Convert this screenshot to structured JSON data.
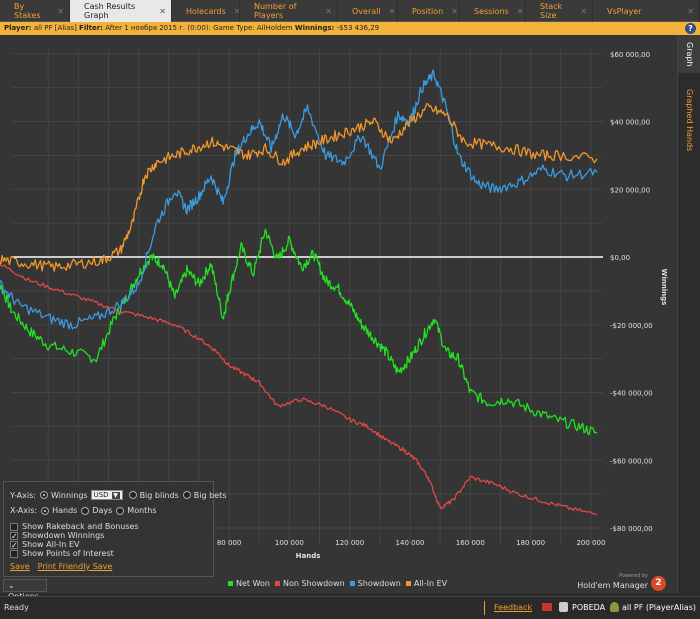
{
  "tabs": [
    {
      "label": "By Stakes",
      "active": false,
      "width": 70
    },
    {
      "label": "Cash Results Graph",
      "active": true,
      "width": 102
    },
    {
      "label": "Holecards",
      "active": false,
      "width": 68
    },
    {
      "label": "Number of Players",
      "active": false,
      "width": 98
    },
    {
      "label": "Overall",
      "active": false,
      "width": 60
    },
    {
      "label": "Position",
      "active": false,
      "width": 62
    },
    {
      "label": "Sessions",
      "active": false,
      "width": 66
    },
    {
      "label": "Stack Size",
      "active": false,
      "width": 67
    },
    {
      "label": "VsPlayer",
      "active": false,
      "width": 107
    }
  ],
  "filter_bar": {
    "player_label": "Player:",
    "player_value": "all PF [Alias]",
    "filter_label": "Filter:",
    "filter_value": "After 1 ноября 2015 г. (0:00): Game Type: AllHoldem",
    "winnings_label": "Winnings:",
    "winnings_value": "-$53 436,29"
  },
  "side_tabs": {
    "graph": "Graph",
    "graphed_hands": "Graphed Hands"
  },
  "options": {
    "y_axis_label": "Y-Axis:",
    "y_winnings": "Winnings",
    "currency": "USD",
    "y_big_blinds": "Big blinds",
    "y_big_bets": "Big bets",
    "x_axis_label": "X-Axis:",
    "x_hands": "Hands",
    "x_days": "Days",
    "x_months": "Months",
    "show_rakeback": "Show Rakeback and Bonuses",
    "showdown_winnings": "Showdown Winnings",
    "show_allin_ev": "Show All-In EV",
    "show_poi": "Show Points of Interest",
    "save": "Save",
    "print_friendly_save": "Print Friendly Save",
    "toggle_label": "Options",
    "checks": {
      "rakeback": false,
      "showdown": true,
      "allin": true,
      "poi": false
    }
  },
  "logo": {
    "powered_by": "Powered by",
    "name": "Hold'em Manager",
    "badge": "2"
  },
  "status": {
    "text": "Ready",
    "feedback": "Feedback",
    "database": "POBEDA",
    "player": "all PF (PlayerAlias)"
  },
  "chart_data": {
    "type": "line",
    "xlabel": "Hands",
    "ylabel": "Winnings",
    "xlim": [
      0,
      204000
    ],
    "ylim": [
      -85000,
      62000
    ],
    "x_ticks": [
      80000,
      100000,
      120000,
      140000,
      160000,
      180000,
      200000
    ],
    "x_tick_labels": [
      "80 000",
      "100 000",
      "120 000",
      "140 000",
      "160 000",
      "180 000",
      "200 000"
    ],
    "y_ticks": [
      60000,
      40000,
      20000,
      0,
      -20000,
      -40000,
      -60000,
      -80000
    ],
    "y_tick_labels": [
      "$60 000,00",
      "$40 000,00",
      "$20 000,00",
      "$0,00",
      "-$20 000,00",
      "-$40 000,00",
      "-$60 000,00",
      "-$80 000,00"
    ],
    "grid": true,
    "legend_position": "bottom",
    "series": [
      {
        "name": "Net Won",
        "color": "#22e022",
        "x": [
          0,
          4000,
          8000,
          14000,
          20000,
          28000,
          36000,
          42000,
          46000,
          50000,
          54000,
          58000,
          62000,
          66000,
          70000,
          74000,
          78000,
          80000,
          84000,
          88000,
          92000,
          96000,
          100000,
          104000,
          108000,
          112000,
          116000,
          120000,
          124000,
          128000,
          132000,
          136000,
          140000,
          144000,
          148000,
          152000,
          156000,
          160000,
          166000,
          172000,
          180000,
          188000,
          196000,
          202000
        ],
        "y": [
          0,
          -8000,
          -16000,
          -22000,
          -26000,
          -28000,
          -30000,
          -18000,
          -12000,
          -5000,
          0,
          -2000,
          -12000,
          -4000,
          -8000,
          -2000,
          -18000,
          -10000,
          3000,
          -5000,
          8000,
          -1000,
          5000,
          -3000,
          1000,
          -7000,
          -9000,
          -14000,
          -20000,
          -24000,
          -28000,
          -34000,
          -30000,
          -24000,
          -18000,
          -28000,
          -30000,
          -40000,
          -43000,
          -42000,
          -45000,
          -48000,
          -50000,
          -52000
        ]
      },
      {
        "name": "Non Showdown",
        "color": "#e04848",
        "x": [
          0,
          6000,
          14000,
          24000,
          34000,
          44000,
          54000,
          62000,
          70000,
          76000,
          80000,
          86000,
          90000,
          96000,
          104000,
          112000,
          120000,
          126000,
          132000,
          138000,
          142000,
          146000,
          150000,
          154000,
          160000,
          168000,
          176000,
          184000,
          192000,
          202000
        ],
        "y": [
          0,
          -3000,
          -7000,
          -10000,
          -13000,
          -16000,
          -18000,
          -20000,
          -24000,
          -28000,
          -32000,
          -35000,
          -37000,
          -44000,
          -42000,
          -44000,
          -48000,
          -50000,
          -54000,
          -57000,
          -60000,
          -65000,
          -74000,
          -72000,
          -65000,
          -67000,
          -70000,
          -72000,
          -74000,
          -76000
        ]
      },
      {
        "name": "Showdown",
        "color": "#3a9ae0",
        "x": [
          0,
          4000,
          10000,
          20000,
          28000,
          36000,
          44000,
          50000,
          56000,
          62000,
          66000,
          70000,
          74000,
          78000,
          82000,
          86000,
          90000,
          94000,
          98000,
          102000,
          106000,
          112000,
          118000,
          124000,
          130000,
          136000,
          140000,
          144000,
          148000,
          152000,
          156000,
          162000,
          168000,
          176000,
          184000,
          192000,
          202000
        ],
        "y": [
          0,
          -8000,
          -14000,
          -18000,
          -20000,
          -18000,
          -14000,
          -8000,
          10000,
          20000,
          14000,
          18000,
          24000,
          16000,
          30000,
          36000,
          40000,
          32000,
          42000,
          36000,
          44000,
          30000,
          28000,
          36000,
          26000,
          42000,
          40000,
          50000,
          54000,
          44000,
          30000,
          22000,
          20000,
          22000,
          26000,
          24000,
          25000
        ]
      },
      {
        "name": "All-In EV",
        "color": "#f0962a",
        "x": [
          0,
          6000,
          14000,
          22000,
          30000,
          38000,
          44000,
          48000,
          52000,
          56000,
          62000,
          68000,
          74000,
          80000,
          86000,
          92000,
          98000,
          104000,
          110000,
          116000,
          122000,
          128000,
          134000,
          140000,
          146000,
          152000,
          158000,
          166000,
          174000,
          182000,
          190000,
          202000
        ],
        "y": [
          0,
          -1000,
          -2000,
          -3000,
          -2000,
          -1000,
          2000,
          10000,
          24000,
          28000,
          30000,
          32000,
          34000,
          32000,
          30000,
          32000,
          28000,
          32000,
          34000,
          36000,
          38000,
          40000,
          34000,
          40000,
          44000,
          42000,
          34000,
          33000,
          32000,
          30000,
          30000,
          29000
        ]
      }
    ]
  }
}
